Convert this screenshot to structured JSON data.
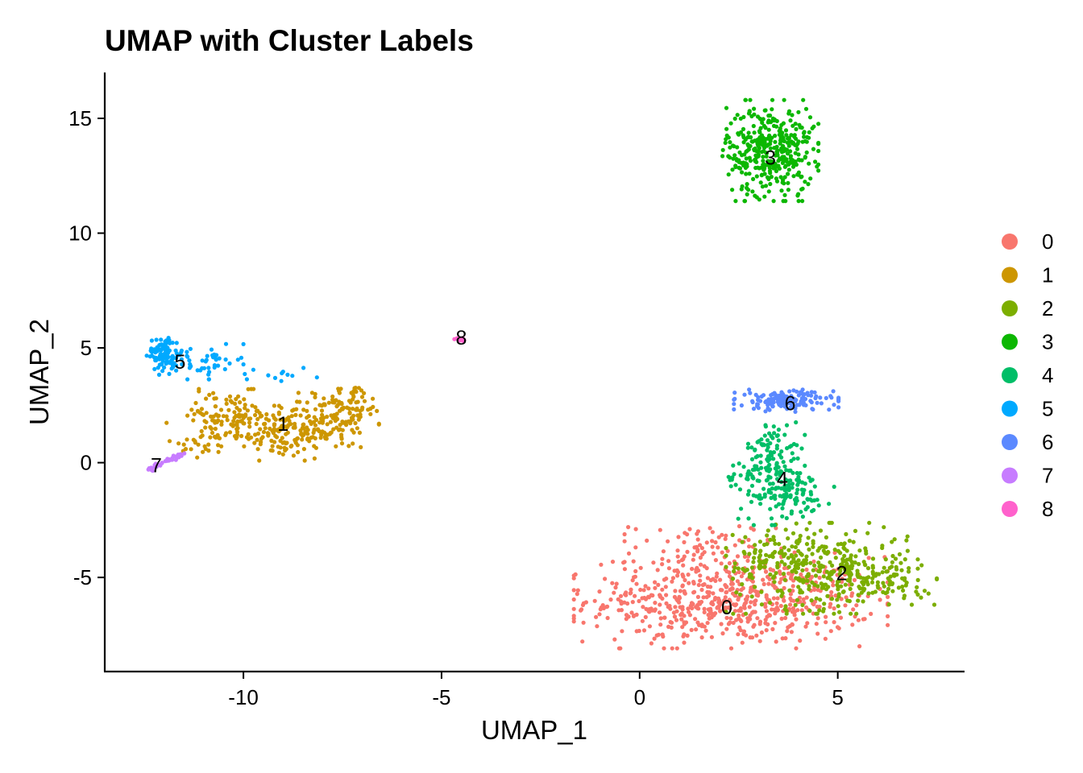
{
  "chart_data": {
    "type": "scatter",
    "title": "UMAP with Cluster Labels",
    "xlabel": "UMAP_1",
    "ylabel": "UMAP_2",
    "xlim": [
      -13.5,
      8.2
    ],
    "ylim": [
      -9.1,
      17.0
    ],
    "xticks": [
      -10,
      -5,
      0,
      5
    ],
    "yticks": [
      -5,
      0,
      5,
      10,
      15
    ],
    "grid": false,
    "legend_position": "right",
    "series": [
      {
        "name": "0",
        "color": "#F8766D",
        "label_pos": [
          2.2,
          -6.3
        ],
        "blobs": [
          {
            "cx": 2.3,
            "cy": -6.0,
            "sx": 1.8,
            "sy": 0.95,
            "n": 620
          },
          {
            "cx": 1.6,
            "cy": -3.8,
            "sx": 0.9,
            "sy": 0.6,
            "n": 80
          }
        ]
      },
      {
        "name": "1",
        "color": "#CD9600",
        "label_pos": [
          -9.0,
          1.7
        ],
        "blobs": [
          {
            "cx": -10.4,
            "cy": 2.0,
            "sx": 0.7,
            "sy": 0.55,
            "n": 110
          },
          {
            "cx": -9.1,
            "cy": 1.3,
            "sx": 0.7,
            "sy": 0.55,
            "n": 130
          },
          {
            "cx": -7.9,
            "cy": 1.8,
            "sx": 0.6,
            "sy": 0.6,
            "n": 120
          },
          {
            "cx": -7.2,
            "cy": 2.6,
            "sx": 0.35,
            "sy": 0.4,
            "n": 50
          },
          {
            "cx": -11.0,
            "cy": 0.8,
            "sx": 0.3,
            "sy": 0.3,
            "n": 20
          }
        ]
      },
      {
        "name": "2",
        "color": "#7CAE00",
        "label_pos": [
          5.1,
          -4.8
        ],
        "blobs": [
          {
            "cx": 4.6,
            "cy": -4.6,
            "sx": 1.1,
            "sy": 0.9,
            "n": 330
          },
          {
            "cx": 6.4,
            "cy": -5.2,
            "sx": 0.5,
            "sy": 0.45,
            "n": 60
          },
          {
            "cx": 3.4,
            "cy": -3.8,
            "sx": 0.5,
            "sy": 0.4,
            "n": 40
          }
        ]
      },
      {
        "name": "3",
        "color": "#0CB702",
        "label_pos": [
          3.3,
          13.3
        ],
        "blobs": [
          {
            "cx": 3.3,
            "cy": 13.6,
            "sx": 0.55,
            "sy": 1.0,
            "n": 380
          }
        ]
      },
      {
        "name": "4",
        "color": "#00BE67",
        "label_pos": [
          3.6,
          -0.7
        ],
        "blobs": [
          {
            "cx": 3.4,
            "cy": 0.4,
            "sx": 0.35,
            "sy": 0.7,
            "n": 100
          },
          {
            "cx": 3.7,
            "cy": -1.4,
            "sx": 0.55,
            "sy": 0.6,
            "n": 110
          },
          {
            "cx": 2.7,
            "cy": -0.8,
            "sx": 0.3,
            "sy": 0.35,
            "n": 25
          }
        ]
      },
      {
        "name": "5",
        "color": "#00A9FF",
        "label_pos": [
          -11.6,
          4.4
        ],
        "blobs": [
          {
            "cx": -12.0,
            "cy": 4.8,
            "sx": 0.2,
            "sy": 0.35,
            "n": 90
          },
          {
            "cx": -11.1,
            "cy": 4.4,
            "sx": 0.5,
            "sy": 0.35,
            "n": 60
          },
          {
            "cx": -9.3,
            "cy": 3.8,
            "sx": 0.6,
            "sy": 0.15,
            "n": 12
          }
        ]
      },
      {
        "name": "6",
        "color": "#5B89FF",
        "label_pos": [
          3.8,
          2.6
        ],
        "blobs": [
          {
            "cx": 3.7,
            "cy": 2.7,
            "sx": 0.6,
            "sy": 0.22,
            "n": 160
          }
        ]
      },
      {
        "name": "7",
        "color": "#C77CFF",
        "label_pos": [
          -12.2,
          -0.1
        ],
        "line": {
          "x0": -12.4,
          "y0": -0.3,
          "x1": -11.5,
          "y1": 0.4,
          "n": 40
        }
      },
      {
        "name": "8",
        "color": "#FF61CC",
        "label_pos": [
          -4.5,
          5.45
        ],
        "blobs": [
          {
            "cx": -4.5,
            "cy": 5.4,
            "sx": 0.08,
            "sy": 0.05,
            "n": 10
          }
        ]
      }
    ],
    "cluster_labels": [
      "0",
      "1",
      "2",
      "3",
      "4",
      "5",
      "6",
      "7",
      "8"
    ]
  }
}
